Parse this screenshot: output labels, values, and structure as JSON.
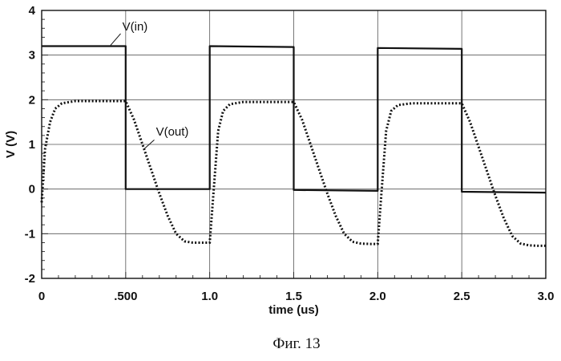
{
  "chart_data": {
    "type": "line",
    "caption": "Фиг. 13",
    "xlabel": "time (us)",
    "ylabel": "V (V)",
    "xlim": [
      0,
      3.0
    ],
    "ylim": [
      -2,
      4
    ],
    "x_ticks": [
      0,
      0.5,
      1.0,
      1.5,
      2.0,
      2.5,
      3.0
    ],
    "x_tick_labels": [
      "0",
      ".500",
      "1.0",
      "1.5",
      "2.0",
      "2.5",
      "3.0"
    ],
    "y_ticks": [
      -2,
      -1,
      0,
      1,
      2,
      3,
      4
    ],
    "y_tick_labels": [
      "-2",
      "-1",
      "0",
      "1",
      "2",
      "3",
      "4"
    ],
    "grid": true,
    "series": [
      {
        "name": "V(in)",
        "style": "solid",
        "x": [
          0,
          0.5,
          0.5,
          1.0,
          1.0,
          1.5,
          1.5,
          2.0,
          2.0,
          2.5,
          2.5,
          3.0
        ],
        "y": [
          3.2,
          3.2,
          0,
          0,
          3.2,
          3.18,
          -0.02,
          -0.04,
          3.16,
          3.14,
          -0.06,
          -0.08
        ]
      },
      {
        "name": "V(out)",
        "style": "dotted",
        "x": [
          0,
          0.02,
          0.05,
          0.08,
          0.12,
          0.2,
          0.5,
          0.55,
          0.6,
          0.65,
          0.7,
          0.75,
          0.8,
          0.85,
          0.9,
          0.95,
          1.0,
          1.02,
          1.05,
          1.08,
          1.12,
          1.2,
          1.5,
          1.55,
          1.6,
          1.65,
          1.7,
          1.75,
          1.8,
          1.85,
          1.9,
          1.95,
          2.0,
          2.02,
          2.05,
          2.08,
          2.12,
          2.2,
          2.5,
          2.55,
          2.6,
          2.65,
          2.7,
          2.75,
          2.8,
          2.85,
          2.9,
          2.95,
          3.0
        ],
        "y": [
          -0.3,
          0.9,
          1.5,
          1.8,
          1.92,
          1.97,
          1.97,
          1.55,
          1.0,
          0.45,
          -0.1,
          -0.6,
          -1.0,
          -1.17,
          -1.2,
          -1.2,
          -1.2,
          -0.2,
          1.3,
          1.75,
          1.9,
          1.95,
          1.95,
          1.55,
          1.0,
          0.45,
          -0.1,
          -0.6,
          -1.0,
          -1.18,
          -1.22,
          -1.23,
          -1.23,
          -0.2,
          1.3,
          1.75,
          1.88,
          1.92,
          1.92,
          1.5,
          0.95,
          0.4,
          -0.15,
          -0.65,
          -1.05,
          -1.22,
          -1.26,
          -1.27,
          -1.27
        ]
      }
    ],
    "annotations": [
      {
        "text": "V(in)",
        "series": "V(in)"
      },
      {
        "text": "V(out)",
        "series": "V(out)"
      }
    ]
  }
}
